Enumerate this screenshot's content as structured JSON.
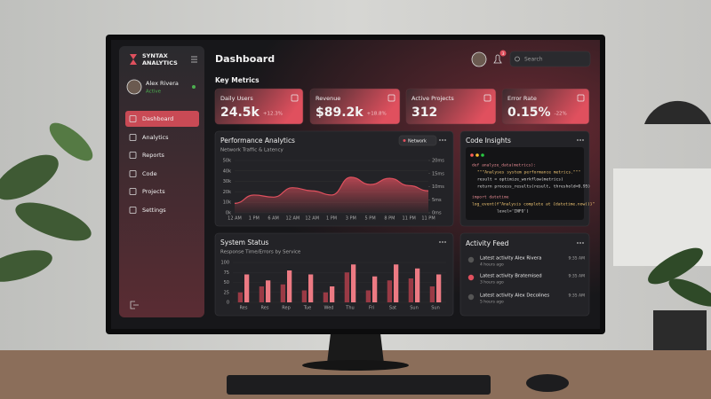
{
  "sidebar": {
    "brand": [
      "SYNTAX",
      "ANALYTICS"
    ],
    "user": {
      "name": "Alex Rivera",
      "status": "Active"
    },
    "nav": [
      "Dashboard",
      "Analytics",
      "Reports",
      "Code",
      "Projects",
      "Settings"
    ]
  },
  "header": {
    "title": "Dashboard",
    "notifications": "3",
    "search": "Search"
  },
  "metrics": {
    "title": "Key Metrics",
    "cards": [
      {
        "label": "Daily Users",
        "value": "24.5k",
        "change": "+12.3%"
      },
      {
        "label": "Revenue",
        "value": "$89.2k",
        "change": "+18.8%"
      },
      {
        "label": "Active Projects",
        "value": "312"
      },
      {
        "label": "Error Rate",
        "value": "0.15%",
        "change": "-22%"
      }
    ]
  },
  "chart_data": [
    {
      "type": "area",
      "title": "Performance Analytics",
      "subtitle": "Network Traffic & Latency",
      "filter": "Network",
      "categories": [
        "12 AM",
        "1 PM",
        "6 AM",
        "12 AM",
        "12 AM",
        "1 PM",
        "3 PM",
        "5 PM",
        "8 PM",
        "11 PM",
        "11 PM"
      ],
      "series": [
        {
          "color": "#e0505e",
          "values": [
            9000,
            17000,
            15000,
            24000,
            21000,
            17000,
            34000,
            27000,
            33000,
            26000,
            21000
          ]
        }
      ],
      "ylim": [
        0,
        50000
      ],
      "yticks": [
        {
          "value": 0,
          "label": "0k"
        },
        {
          "value": 10000,
          "label": "10k"
        },
        {
          "value": 20000,
          "label": "20k"
        },
        {
          "value": 30000,
          "label": "30k"
        },
        {
          "value": 40000,
          "label": "40k"
        },
        {
          "value": 50000,
          "label": "50k"
        }
      ],
      "y2lim": [
        0,
        20
      ],
      "y2ticks": [
        {
          "value": 0,
          "label": "0ms"
        },
        {
          "value": 5,
          "label": "5ms"
        },
        {
          "value": 10,
          "label": "10ms"
        },
        {
          "value": 15,
          "label": "15ms"
        },
        {
          "value": 20,
          "label": "20ms"
        }
      ]
    },
    {
      "type": "bar",
      "title": "System Status",
      "subtitle": "Response Time/Errors by Service",
      "categories": [
        "Res",
        "Res",
        "Rep",
        "Tue",
        "Wed",
        "Thu",
        "Fri",
        "Sat",
        "Sun",
        "Sun"
      ],
      "series": [
        {
          "color": "#9a3a45",
          "values": [
            25,
            40,
            45,
            30,
            25,
            75,
            30,
            55,
            60,
            40
          ]
        },
        {
          "color": "#ec7a83",
          "values": [
            70,
            55,
            80,
            70,
            40,
            95,
            65,
            95,
            85,
            70
          ]
        }
      ],
      "ylim": [
        0,
        100
      ],
      "yticks": [
        0,
        25,
        50,
        75,
        100
      ]
    }
  ],
  "code": {
    "title": "Code Insights",
    "lines": [
      "def analyze_data(metrics):",
      "\"\"\"Analyses system performance metrics.\"\"\"",
      "result = optimize_workflow(metrics)",
      "return process_results(result, threshold=0.95)",
      "import datetime",
      "log_event(f\"Analysis complete at {datetime.now()}\"",
      "level='INFO')"
    ]
  },
  "activity": {
    "title": "Activity Feed",
    "items": [
      {
        "text": "Latest activity Alex Rivera",
        "ago": "4 hours ago",
        "time": "9:35 AM"
      },
      {
        "text": "Latest activity Bratemised",
        "ago": "3 hours ago",
        "time": "9:35 AM"
      },
      {
        "text": "Latest activity Alex Decolines",
        "ago": "5 hours ago",
        "time": "9:35 AM"
      }
    ]
  }
}
